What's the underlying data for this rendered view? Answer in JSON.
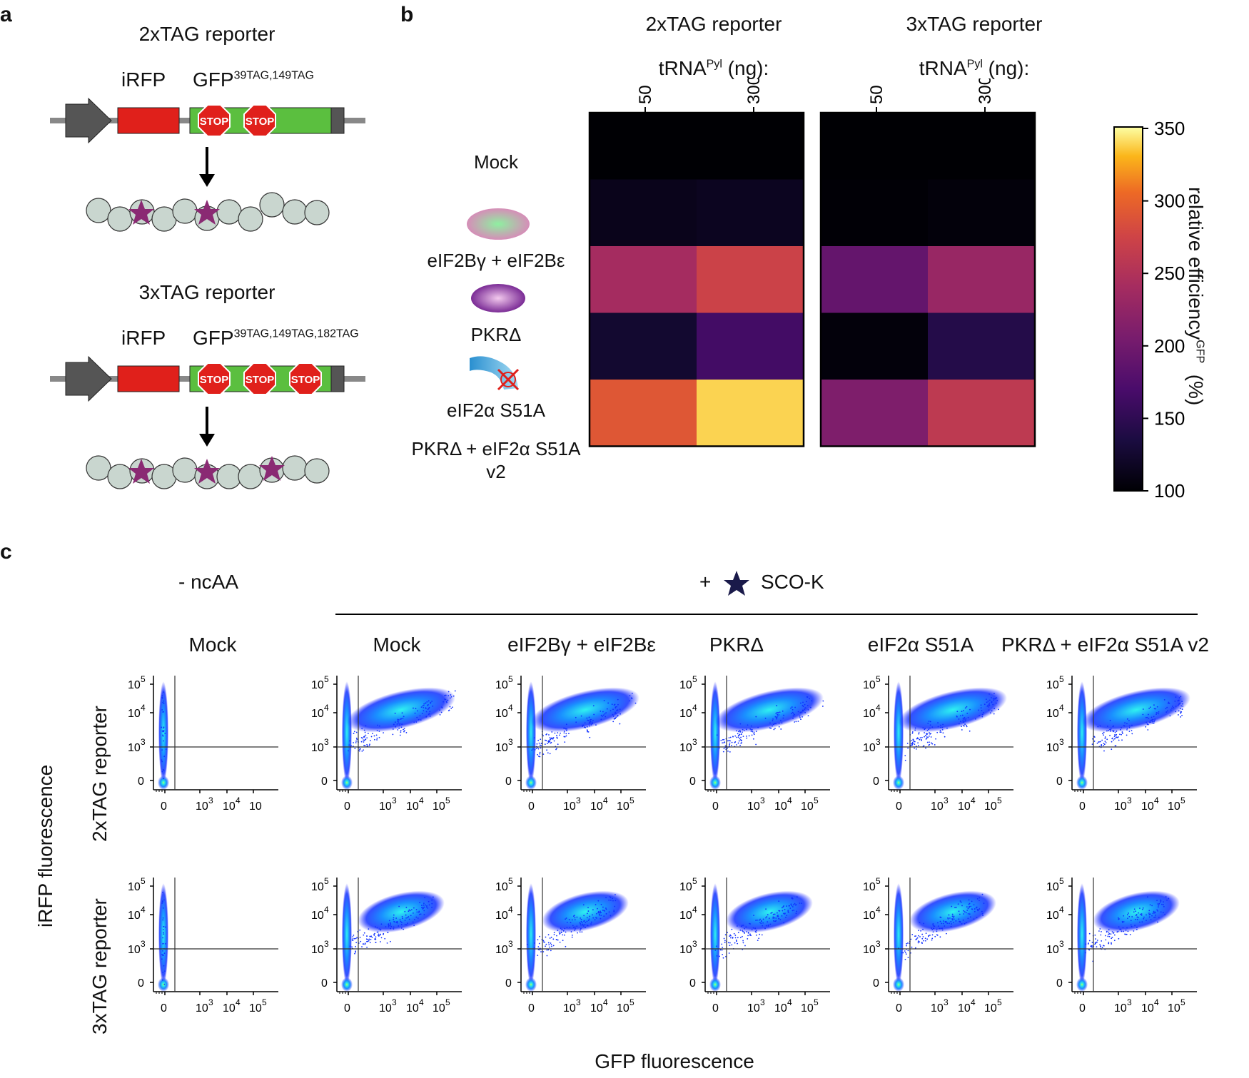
{
  "panels": {
    "a": "a",
    "b": "b",
    "c": "c"
  },
  "panel_a": {
    "reporter2": {
      "title": "2xTAG reporter",
      "irfp": "iRFP",
      "gfp_base": "GFP",
      "gfp_sup": "39TAG,149TAG"
    },
    "reporter3": {
      "title": "3xTAG reporter",
      "irfp": "iRFP",
      "gfp_base": "GFP",
      "gfp_sup": "39TAG,149TAG,182TAG"
    },
    "stop_label": "STOP",
    "colors": {
      "promoter": "#555555",
      "irfp": "#e0201b",
      "gfp": "#5bbf3f",
      "stop": "#e0201b",
      "bead": "#c9d6cf",
      "star": "#8a2a73"
    }
  },
  "chart_data": [
    {
      "type": "heatmap",
      "title": "2xTAG reporter",
      "xlabel_base": "tRNA",
      "xlabel_sup": "Pyl",
      "xlabel_suffix": " (ng):",
      "categories": [
        "50",
        "300"
      ],
      "rows": [
        "Mock",
        "eIF2Bγ + eIF2Bε",
        "PKRΔ",
        "eIF2α S51A",
        "PKRΔ + eIF2α S51A v2"
      ],
      "values": [
        [
          100,
          100
        ],
        [
          113,
          116
        ],
        [
          240,
          272
        ],
        [
          125,
          165
        ],
        [
          290,
          338
        ]
      ]
    },
    {
      "type": "heatmap",
      "title": "3xTAG reporter",
      "xlabel_base": "tRNA",
      "xlabel_sup": "Pyl",
      "xlabel_suffix": " (ng):",
      "categories": [
        "50",
        "300"
      ],
      "rows": [
        "Mock",
        "eIF2Bγ + eIF2Bε",
        "PKRΔ",
        "eIF2α S51A",
        "PKRΔ + eIF2α S51A v2"
      ],
      "values": [
        [
          100,
          100
        ],
        [
          101,
          104
        ],
        [
          190,
          230
        ],
        [
          104,
          142
        ],
        [
          210,
          260
        ]
      ]
    }
  ],
  "heatmap_rows": {
    "mock": "Mock",
    "eif2b_line1": "eIF2Bγ + eIF2Bε",
    "pkr": "PKRΔ",
    "eif2a": "eIF2α S51A",
    "combo_line1": "PKRΔ + eIF2α S51A",
    "combo_line2": "v2"
  },
  "colorbar": {
    "ticks": [
      "350",
      "300",
      "250",
      "200",
      "150",
      "100"
    ],
    "label_base": "relative efficiency",
    "label_sup": "GFP",
    "label_unit": "(%)",
    "range": [
      100,
      350
    ],
    "colormap": "inferno"
  },
  "panel_c": {
    "no_ncaa": "- ncAA",
    "plus": "+",
    "sco_k": "SCO-K",
    "columns": [
      "Mock",
      "Mock",
      "eIF2Bγ + eIF2Bε",
      "PKRΔ",
      "eIF2α S51A",
      "PKRΔ + eIF2α S51A v2"
    ],
    "rows": [
      "2xTAG reporter",
      "3xTAG reporter"
    ],
    "y_axis_label": "iRFP fluorescence",
    "x_axis_label": "GFP fluorescence",
    "y_ticks": [
      "10",
      "10",
      "10",
      "0"
    ],
    "y_ticks_exp": [
      "5",
      "4",
      "3",
      ""
    ],
    "x_ticks": [
      "0",
      "10",
      "10",
      "10"
    ],
    "x_ticks_exp": [
      "",
      "3",
      "4",
      "5"
    ],
    "first_plot_top_x_ticks": [
      "0",
      "10",
      "10",
      "10"
    ],
    "first_plot_top_x_exp": [
      "",
      "3",
      "4",
      ""
    ]
  }
}
